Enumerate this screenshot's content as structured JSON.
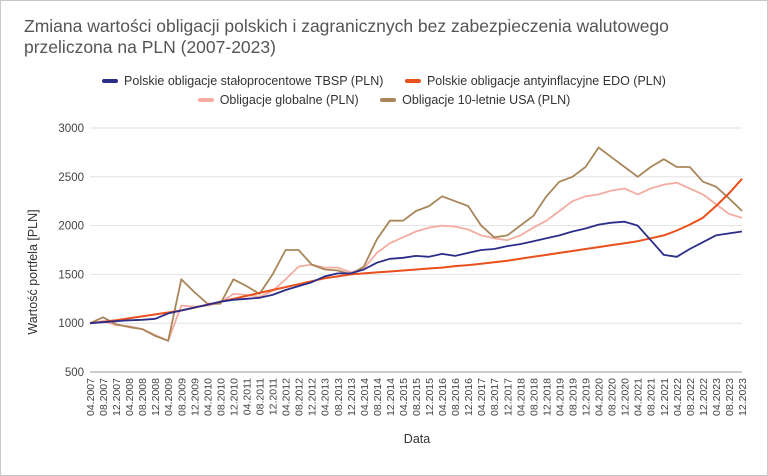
{
  "chart_data": {
    "type": "line",
    "title": "Zmiana wartości obligacji polskich i zagranicznych bez zabezpieczenia walutowego przeliczona na PLN (2007-2023)",
    "xlabel": "Data",
    "ylabel": "Wartość portfela [PLN]",
    "ylim": [
      500,
      3000
    ],
    "yticks": [
      "500",
      "1000",
      "1500",
      "2000",
      "2500",
      "3000"
    ],
    "xticks": [
      "04.2007",
      "08.2007",
      "12.2007",
      "04.2008",
      "08.2008",
      "12.2008",
      "04.2009",
      "08.2009",
      "12.2009",
      "04.2010",
      "08.2010",
      "12.2010",
      "04.2011",
      "08.2011",
      "12.2011",
      "04.2012",
      "08.2012",
      "12.2012",
      "04.2013",
      "08.2013",
      "12.2013",
      "04.2014",
      "08.2014",
      "12.2014",
      "04.2015",
      "08.2015",
      "12.2015",
      "04.2016",
      "08.2016",
      "12.2016",
      "04.2017",
      "08.2017",
      "12.2017",
      "04.2018",
      "08.2018",
      "12.2018",
      "04.2019",
      "08.2019",
      "12.2019",
      "04.2020",
      "08.2020",
      "12.2020",
      "04.2021",
      "08.2021",
      "12.2021",
      "04.2022",
      "08.2022",
      "12.2022",
      "04.2023",
      "08.2023",
      "12.2023"
    ],
    "grid": "horizontal",
    "legend_position": "top",
    "series": [
      {
        "name": "Polskie obligacje stałoprocentowe TBSP (PLN)",
        "color": "#2b2d8a",
        "values": [
          1000,
          1010,
          1020,
          1030,
          1035,
          1045,
          1100,
          1130,
          1160,
          1190,
          1220,
          1240,
          1250,
          1260,
          1290,
          1340,
          1380,
          1420,
          1480,
          1510,
          1510,
          1550,
          1620,
          1660,
          1670,
          1690,
          1680,
          1710,
          1690,
          1720,
          1750,
          1760,
          1790,
          1810,
          1840,
          1870,
          1900,
          1940,
          1970,
          2010,
          2030,
          2040,
          2000,
          1850,
          1700,
          1680,
          1760,
          1830,
          1900,
          1920,
          1940
        ]
      },
      {
        "name": "Polskie obligacje antyinflacyjne EDO (PLN)",
        "color": "#e8501c",
        "values": [
          1000,
          1015,
          1030,
          1050,
          1070,
          1090,
          1110,
          1130,
          1160,
          1190,
          1220,
          1250,
          1280,
          1310,
          1340,
          1370,
          1400,
          1430,
          1460,
          1480,
          1500,
          1510,
          1520,
          1530,
          1540,
          1550,
          1560,
          1570,
          1585,
          1595,
          1610,
          1625,
          1640,
          1660,
          1680,
          1700,
          1720,
          1740,
          1760,
          1780,
          1800,
          1820,
          1840,
          1870,
          1900,
          1950,
          2010,
          2080,
          2200,
          2330,
          2480
        ]
      },
      {
        "name": "Obligacje globalne (PLN)",
        "color": "#f5aca0",
        "values": [
          1000,
          1020,
          980,
          970,
          940,
          880,
          820,
          1180,
          1170,
          1180,
          1210,
          1300,
          1290,
          1270,
          1330,
          1450,
          1580,
          1600,
          1570,
          1570,
          1520,
          1560,
          1720,
          1820,
          1880,
          1940,
          1980,
          2000,
          1990,
          1960,
          1900,
          1870,
          1850,
          1900,
          1980,
          2050,
          2150,
          2250,
          2300,
          2320,
          2360,
          2380,
          2320,
          2380,
          2420,
          2440,
          2380,
          2320,
          2220,
          2120,
          2080
        ]
      },
      {
        "name": "Obligacje 10-letnie USA (PLN)",
        "color": "#a9865a",
        "values": [
          1000,
          1060,
          990,
          960,
          940,
          870,
          820,
          1450,
          1320,
          1200,
          1200,
          1450,
          1380,
          1300,
          1500,
          1750,
          1750,
          1600,
          1550,
          1540,
          1500,
          1580,
          1860,
          2050,
          2050,
          2150,
          2200,
          2300,
          2250,
          2200,
          2000,
          1880,
          1900,
          2000,
          2100,
          2300,
          2450,
          2500,
          2600,
          2800,
          2700,
          2600,
          2500,
          2600,
          2680,
          2600,
          2600,
          2450,
          2400,
          2280,
          2150
        ]
      }
    ]
  }
}
